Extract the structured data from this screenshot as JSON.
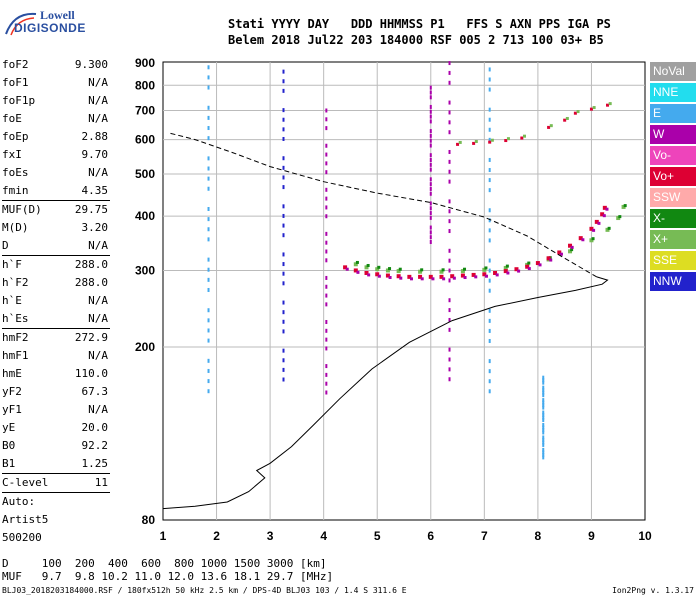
{
  "logo": {
    "line1": "Lowell",
    "line2": "DIGISONDE"
  },
  "header": {
    "line1": "Stati YYYY DAY   DDD HHMMSS P1   FFS S AXN PPS IGA PS",
    "line2": "Belem 2018 Jul22 203 184000 RSF 005 2 713 100 03+ B5"
  },
  "params": [
    {
      "key": "foF2",
      "value": "9.300"
    },
    {
      "key": "foF1",
      "value": "N/A"
    },
    {
      "key": "foF1p",
      "value": "N/A"
    },
    {
      "key": "foE",
      "value": "N/A"
    },
    {
      "key": "foEp",
      "value": "2.88"
    },
    {
      "key": "fxI",
      "value": "9.70"
    },
    {
      "key": "foEs",
      "value": "N/A"
    },
    {
      "key": "fmin",
      "value": "4.35"
    },
    {
      "sep": true
    },
    {
      "key": "MUF(D)",
      "value": "29.75"
    },
    {
      "key": "M(D)",
      "value": "3.20"
    },
    {
      "key": "D",
      "value": "N/A"
    },
    {
      "sep": true
    },
    {
      "key": "h`F",
      "value": "288.0"
    },
    {
      "key": "h`F2",
      "value": "288.0"
    },
    {
      "key": "h`E",
      "value": "N/A"
    },
    {
      "key": "h`Es",
      "value": "N/A"
    },
    {
      "sep": true
    },
    {
      "key": "hmF2",
      "value": "272.9"
    },
    {
      "key": "hmF1",
      "value": "N/A"
    },
    {
      "key": "hmE",
      "value": "110.0"
    },
    {
      "key": "yF2",
      "value": "67.3"
    },
    {
      "key": "yF1",
      "value": "N/A"
    },
    {
      "key": "yE",
      "value": "20.0"
    },
    {
      "key": "B0",
      "value": "92.2"
    },
    {
      "key": "B1",
      "value": "1.25"
    },
    {
      "sep": true
    },
    {
      "key": "C-level",
      "value": "11"
    },
    {
      "sep": true
    },
    {
      "key": "Auto:",
      "value": ""
    },
    {
      "key": "Artist5",
      "value": ""
    },
    {
      "key": "500200",
      "value": ""
    }
  ],
  "legend": [
    {
      "label": "NoVal",
      "color": "#a0a0a0"
    },
    {
      "label": "NNE",
      "color": "#22ddee"
    },
    {
      "label": "E",
      "color": "#44aaee"
    },
    {
      "label": "W",
      "color": "#aa00aa"
    },
    {
      "label": "Vo-",
      "color": "#ee44bb"
    },
    {
      "label": "Vo+",
      "color": "#dd0033"
    },
    {
      "label": "SSW",
      "color": "#ffaaaa"
    },
    {
      "label": "X-",
      "color": "#118811"
    },
    {
      "label": "X+",
      "color": "#77bb55"
    },
    {
      "label": "SSE",
      "color": "#dddd22"
    },
    {
      "label": "NNW",
      "color": "#2222cc"
    }
  ],
  "footer": {
    "d_line": "D     100  200  400  600  800 1000 1500 3000 [km]",
    "muf_line": "MUF   9.7  9.8 10.2 11.0 12.0 13.6 18.1 29.7 [MHz]",
    "info": "BLJ03_2018203184000.RSF / 180fx512h 50 kHz 2.5 km / DPS-4D BLJ03 103 / 1.4 S 311.6 E",
    "version": "Ion2Png v. 1.3.17"
  },
  "chart_data": {
    "type": "scatter",
    "x_ticks": [
      1,
      2,
      3,
      4,
      5,
      6,
      7,
      8,
      9,
      10
    ],
    "y_ticks": [
      80,
      200,
      300,
      400,
      500,
      600,
      700,
      800,
      900
    ],
    "xlim": [
      1,
      10
    ],
    "ylim": [
      80,
      905
    ],
    "y_scale": "log",
    "ionogram_trace": [
      [
        4.4,
        305
      ],
      [
        4.6,
        300
      ],
      [
        4.8,
        296
      ],
      [
        5.0,
        294
      ],
      [
        5.2,
        292
      ],
      [
        5.4,
        291
      ],
      [
        5.6,
        290
      ],
      [
        5.8,
        290
      ],
      [
        6.0,
        290
      ],
      [
        6.2,
        290
      ],
      [
        6.4,
        291
      ],
      [
        6.6,
        292
      ],
      [
        6.8,
        293
      ],
      [
        7.0,
        294
      ],
      [
        7.2,
        296
      ],
      [
        7.4,
        299
      ],
      [
        7.6,
        302
      ],
      [
        7.8,
        306
      ],
      [
        8.0,
        312
      ],
      [
        8.2,
        320
      ],
      [
        8.4,
        330
      ],
      [
        8.6,
        342
      ],
      [
        8.8,
        356
      ],
      [
        9.0,
        374
      ],
      [
        9.1,
        388
      ],
      [
        9.2,
        404
      ],
      [
        9.25,
        418
      ]
    ],
    "x_trace": [
      [
        4.6,
        310
      ],
      [
        4.8,
        305
      ],
      [
        5.0,
        302
      ],
      [
        5.2,
        300
      ],
      [
        5.4,
        299
      ],
      [
        5.8,
        298
      ],
      [
        6.2,
        298
      ],
      [
        6.6,
        299
      ],
      [
        7.0,
        301
      ],
      [
        7.4,
        304
      ],
      [
        7.8,
        309
      ],
      [
        8.2,
        318
      ],
      [
        8.6,
        332
      ],
      [
        9.0,
        352
      ],
      [
        9.3,
        372
      ],
      [
        9.5,
        396
      ],
      [
        9.6,
        420
      ]
    ],
    "es_trace": [
      [
        6.5,
        585
      ],
      [
        6.8,
        588
      ],
      [
        7.1,
        592
      ],
      [
        7.4,
        597
      ],
      [
        7.7,
        605
      ],
      [
        8.2,
        640
      ],
      [
        8.5,
        665
      ],
      [
        8.7,
        690
      ],
      [
        9.0,
        705
      ],
      [
        9.3,
        720
      ]
    ],
    "vertical_streaks": [
      {
        "x": 6.0,
        "y": [
          340,
          790
        ],
        "color": "#aa00aa"
      },
      {
        "x": 6.35,
        "y": [
          160,
          900
        ],
        "color": "#aa00aa"
      },
      {
        "x": 7.1,
        "y": [
          150,
          870
        ],
        "color": "#44aaee"
      },
      {
        "x": 3.25,
        "y": [
          160,
          860
        ],
        "color": "#2222cc"
      },
      {
        "x": 4.05,
        "y": [
          150,
          700
        ],
        "color": "#aa00aa"
      },
      {
        "x": 8.1,
        "y": [
          110,
          170
        ],
        "color": "#44aaee"
      },
      {
        "x": 1.85,
        "y": [
          150,
          880
        ],
        "color": "#44aaee"
      }
    ],
    "profile_solid": [
      [
        1.0,
        85
      ],
      [
        1.6,
        86
      ],
      [
        2.2,
        88
      ],
      [
        2.6,
        93
      ],
      [
        2.9,
        100
      ],
      [
        2.75,
        104
      ],
      [
        3.0,
        108
      ],
      [
        3.4,
        118
      ],
      [
        3.8,
        132
      ],
      [
        4.3,
        152
      ],
      [
        4.9,
        178
      ],
      [
        5.6,
        205
      ],
      [
        6.4,
        230
      ],
      [
        7.2,
        248
      ],
      [
        8.0,
        260
      ],
      [
        8.7,
        270
      ],
      [
        9.2,
        279
      ],
      [
        9.3,
        285
      ],
      [
        9.1,
        290
      ]
    ],
    "profile_dashed": [
      [
        9.1,
        290
      ],
      [
        8.5,
        320
      ],
      [
        7.8,
        360
      ],
      [
        7.0,
        398
      ],
      [
        6.0,
        430
      ],
      [
        5.0,
        452
      ],
      [
        4.0,
        480
      ],
      [
        3.0,
        520
      ],
      [
        2.3,
        560
      ],
      [
        1.6,
        600
      ],
      [
        1.1,
        622
      ]
    ]
  }
}
